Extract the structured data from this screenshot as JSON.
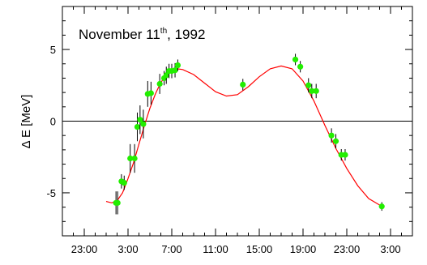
{
  "chart_data": {
    "type": "scatter",
    "title": "November 11",
    "title_superscript": "th",
    "title_suffix": ", 1992",
    "xlabel": "",
    "ylabel": "Δ E [MeV]",
    "xlim": [
      -2,
      30
    ],
    "ylim": [
      -8,
      8
    ],
    "x_ticks": [
      {
        "value": 0,
        "label": "23:00"
      },
      {
        "value": 4,
        "label": "3:00"
      },
      {
        "value": 8,
        "label": "7:00"
      },
      {
        "value": 12,
        "label": "11:00"
      },
      {
        "value": 16,
        "label": "15:00"
      },
      {
        "value": 20,
        "label": "19:00"
      },
      {
        "value": 24,
        "label": "23:00"
      },
      {
        "value": 28,
        "label": "3:00"
      }
    ],
    "y_ticks": [
      {
        "value": 5,
        "label": "5"
      },
      {
        "value": 0,
        "label": "0"
      },
      {
        "value": -5,
        "label": "-5"
      }
    ],
    "reference_line_y": 0,
    "grid": false,
    "colors": {
      "points": "#22ee00",
      "fit": "#ff0000",
      "errorbars": "#000000",
      "reference": "#000000"
    },
    "series": [
      {
        "kind": "measurements",
        "points": [
          {
            "x": 2.9,
            "y": -5.7,
            "err": 0.8
          },
          {
            "x": 3.05,
            "y": -5.7,
            "err": 0.8
          },
          {
            "x": 3.4,
            "y": -4.2,
            "err": 0.5
          },
          {
            "x": 3.65,
            "y": -4.3,
            "err": 0.5
          },
          {
            "x": 4.2,
            "y": -2.6,
            "err": 1.0
          },
          {
            "x": 4.6,
            "y": -2.6,
            "err": 1.0
          },
          {
            "x": 4.85,
            "y": -0.4,
            "err": 1.0
          },
          {
            "x": 5.1,
            "y": 0.1,
            "err": 1.0
          },
          {
            "x": 5.4,
            "y": -0.2,
            "err": 1.0
          },
          {
            "x": 5.8,
            "y": 1.9,
            "err": 0.9
          },
          {
            "x": 6.1,
            "y": 1.95,
            "err": 0.8
          },
          {
            "x": 6.9,
            "y": 2.6,
            "err": 0.7
          },
          {
            "x": 7.3,
            "y": 3.0,
            "err": 0.5
          },
          {
            "x": 7.5,
            "y": 3.2,
            "err": 0.6
          },
          {
            "x": 7.75,
            "y": 3.5,
            "err": 0.5
          },
          {
            "x": 8.0,
            "y": 3.5,
            "err": 0.5
          },
          {
            "x": 8.3,
            "y": 3.55,
            "err": 0.5
          },
          {
            "x": 8.55,
            "y": 3.9,
            "err": 0.4
          },
          {
            "x": 14.5,
            "y": 2.55,
            "err": 0.4
          },
          {
            "x": 19.3,
            "y": 4.3,
            "err": 0.4
          },
          {
            "x": 19.75,
            "y": 3.8,
            "err": 0.4
          },
          {
            "x": 20.5,
            "y": 2.5,
            "err": 0.5
          },
          {
            "x": 20.8,
            "y": 2.1,
            "err": 0.5
          },
          {
            "x": 21.2,
            "y": 2.1,
            "err": 0.5
          },
          {
            "x": 22.6,
            "y": -1.0,
            "err": 0.5
          },
          {
            "x": 23.0,
            "y": -1.4,
            "err": 0.5
          },
          {
            "x": 23.5,
            "y": -2.35,
            "err": 0.4
          },
          {
            "x": 23.85,
            "y": -2.35,
            "err": 0.4
          },
          {
            "x": 27.2,
            "y": -5.95,
            "err": 0.3
          }
        ]
      },
      {
        "kind": "fit",
        "points": [
          {
            "x": 2.0,
            "y": -5.6
          },
          {
            "x": 2.5,
            "y": -5.7
          },
          {
            "x": 3.0,
            "y": -5.55
          },
          {
            "x": 3.5,
            "y": -5.0
          },
          {
            "x": 4.0,
            "y": -4.0
          },
          {
            "x": 4.5,
            "y": -2.9
          },
          {
            "x": 5.0,
            "y": -1.6
          },
          {
            "x": 5.5,
            "y": -0.3
          },
          {
            "x": 6.0,
            "y": 0.9
          },
          {
            "x": 6.5,
            "y": 1.9
          },
          {
            "x": 7.0,
            "y": 2.7
          },
          {
            "x": 7.5,
            "y": 3.2
          },
          {
            "x": 8.0,
            "y": 3.5
          },
          {
            "x": 8.5,
            "y": 3.65
          },
          {
            "x": 9.0,
            "y": 3.6
          },
          {
            "x": 10.0,
            "y": 3.25
          },
          {
            "x": 11.0,
            "y": 2.65
          },
          {
            "x": 12.0,
            "y": 2.05
          },
          {
            "x": 13.0,
            "y": 1.75
          },
          {
            "x": 14.0,
            "y": 1.85
          },
          {
            "x": 15.0,
            "y": 2.4
          },
          {
            "x": 16.0,
            "y": 3.1
          },
          {
            "x": 17.0,
            "y": 3.65
          },
          {
            "x": 18.0,
            "y": 3.85
          },
          {
            "x": 19.0,
            "y": 3.65
          },
          {
            "x": 20.0,
            "y": 2.8
          },
          {
            "x": 21.0,
            "y": 1.4
          },
          {
            "x": 22.0,
            "y": -0.3
          },
          {
            "x": 23.0,
            "y": -1.9
          },
          {
            "x": 24.0,
            "y": -3.3
          },
          {
            "x": 25.0,
            "y": -4.5
          },
          {
            "x": 26.0,
            "y": -5.4
          },
          {
            "x": 27.0,
            "y": -5.85
          },
          {
            "x": 27.3,
            "y": -5.95
          }
        ]
      }
    ]
  }
}
